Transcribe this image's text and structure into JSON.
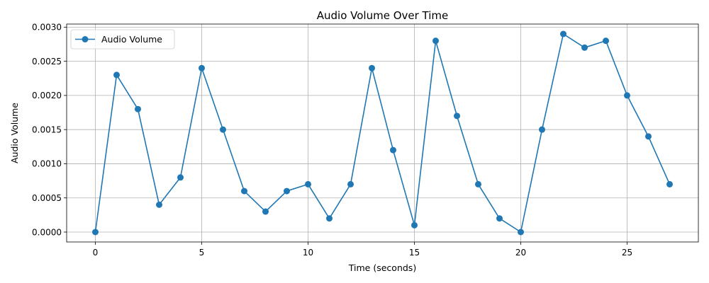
{
  "chart_data": {
    "type": "line",
    "title": "Audio Volume Over Time",
    "xlabel": "Time (seconds)",
    "ylabel": "Audio Volume",
    "xlim": [
      -1.35,
      28.35
    ],
    "ylim": [
      -0.000145,
      0.003045
    ],
    "xticks": [
      0,
      5,
      10,
      15,
      20,
      25
    ],
    "xtick_labels": [
      "0",
      "5",
      "10",
      "15",
      "20",
      "25"
    ],
    "yticks": [
      0,
      0.0005,
      0.001,
      0.0015,
      0.002,
      0.0025,
      0.003
    ],
    "ytick_labels": [
      "0.0000",
      "0.0005",
      "0.0010",
      "0.0015",
      "0.0020",
      "0.0025",
      "0.0030"
    ],
    "grid": true,
    "legend_position": "top-left",
    "series": [
      {
        "name": "Audio Volume",
        "color": "#1f77b4",
        "marker": "circle",
        "x": [
          0,
          1,
          2,
          3,
          4,
          5,
          6,
          7,
          8,
          9,
          10,
          11,
          12,
          13,
          14,
          15,
          16,
          17,
          18,
          19,
          20,
          21,
          22,
          23,
          24,
          25,
          26,
          27
        ],
        "y": [
          0.0,
          0.0023,
          0.0018,
          0.0004,
          0.0008,
          0.0024,
          0.0015,
          0.0006,
          0.0003,
          0.0006,
          0.0007,
          0.0002,
          0.0007,
          0.0024,
          0.0012,
          0.0001,
          0.0028,
          0.0017,
          0.0007,
          0.0002,
          0.0,
          0.0015,
          0.0029,
          0.0027,
          0.0028,
          0.002,
          0.0014,
          0.0007
        ]
      }
    ]
  }
}
